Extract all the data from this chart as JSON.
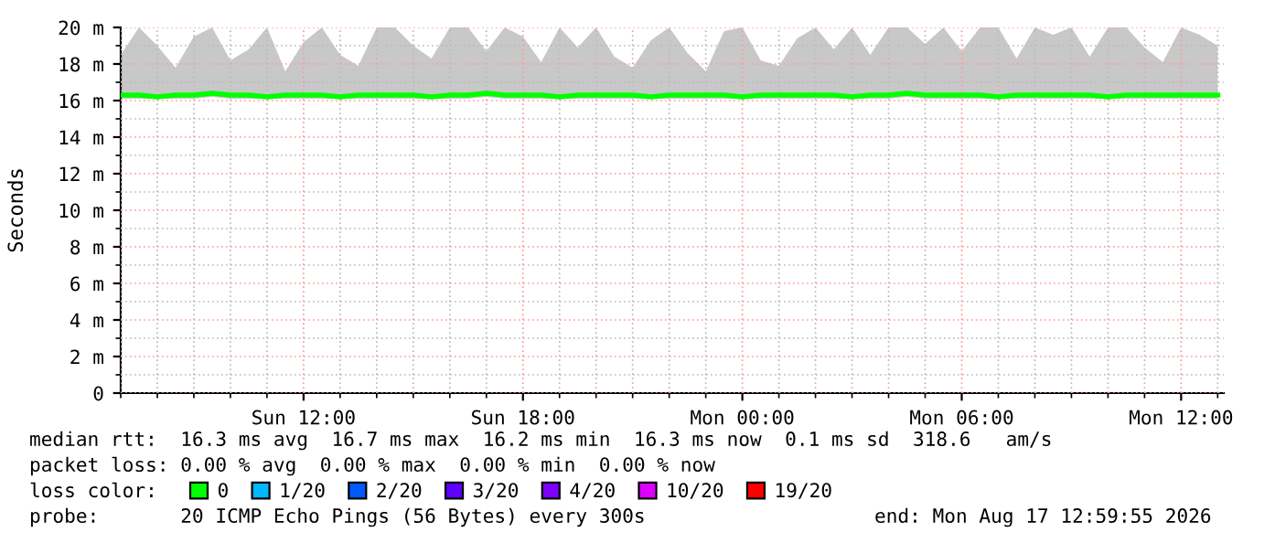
{
  "chart_data": {
    "type": "line",
    "ylabel": "Seconds",
    "x": [
      "2026-08-16T07:00",
      "2026-08-16T07:30",
      "2026-08-16T08:00",
      "2026-08-16T08:30",
      "2026-08-16T09:00",
      "2026-08-16T09:30",
      "2026-08-16T10:00",
      "2026-08-16T10:30",
      "2026-08-16T11:00",
      "2026-08-16T11:30",
      "2026-08-16T12:00",
      "2026-08-16T12:30",
      "2026-08-16T13:00",
      "2026-08-16T13:30",
      "2026-08-16T14:00",
      "2026-08-16T14:30",
      "2026-08-16T15:00",
      "2026-08-16T15:30",
      "2026-08-16T16:00",
      "2026-08-16T16:30",
      "2026-08-16T17:00",
      "2026-08-16T17:30",
      "2026-08-16T18:00",
      "2026-08-16T18:30",
      "2026-08-16T19:00",
      "2026-08-16T19:30",
      "2026-08-16T20:00",
      "2026-08-16T20:30",
      "2026-08-16T21:00",
      "2026-08-16T21:30",
      "2026-08-16T22:00",
      "2026-08-16T22:30",
      "2026-08-16T23:00",
      "2026-08-16T23:30",
      "2026-08-17T00:00",
      "2026-08-17T00:30",
      "2026-08-17T01:00",
      "2026-08-17T01:30",
      "2026-08-17T02:00",
      "2026-08-17T02:30",
      "2026-08-17T03:00",
      "2026-08-17T03:30",
      "2026-08-17T04:00",
      "2026-08-17T04:30",
      "2026-08-17T05:00",
      "2026-08-17T05:30",
      "2026-08-17T06:00",
      "2026-08-17T06:30",
      "2026-08-17T07:00",
      "2026-08-17T07:30",
      "2026-08-17T08:00",
      "2026-08-17T08:30",
      "2026-08-17T09:00",
      "2026-08-17T09:30",
      "2026-08-17T10:00",
      "2026-08-17T10:30",
      "2026-08-17T11:00",
      "2026-08-17T11:30",
      "2026-08-17T12:00",
      "2026-08-17T12:30",
      "2026-08-17T13:00"
    ],
    "series": [
      {
        "name": "0",
        "color": "#00ff00",
        "values": [
          16.3,
          16.3,
          16.2,
          16.3,
          16.3,
          16.4,
          16.3,
          16.3,
          16.2,
          16.3,
          16.3,
          16.3,
          16.2,
          16.3,
          16.3,
          16.3,
          16.3,
          16.2,
          16.3,
          16.3,
          16.4,
          16.3,
          16.3,
          16.3,
          16.2,
          16.3,
          16.3,
          16.3,
          16.3,
          16.2,
          16.3,
          16.3,
          16.3,
          16.3,
          16.2,
          16.3,
          16.3,
          16.3,
          16.3,
          16.3,
          16.2,
          16.3,
          16.3,
          16.4,
          16.3,
          16.3,
          16.3,
          16.3,
          16.2,
          16.3,
          16.3,
          16.3,
          16.3,
          16.3,
          16.2,
          16.3,
          16.3,
          16.3,
          16.3,
          16.3,
          16.3
        ],
        "lower": [
          16.1,
          16.1,
          16.1,
          16.1,
          16.1,
          16.2,
          16.1,
          16.1,
          16.1,
          16.1,
          16.1,
          16.1,
          16.1,
          16.1,
          16.1,
          16.1,
          16.1,
          16.1,
          16.1,
          16.1,
          16.2,
          16.1,
          16.1,
          16.1,
          16.1,
          16.1,
          16.1,
          16.1,
          16.1,
          16.1,
          16.1,
          16.1,
          16.1,
          16.1,
          16.1,
          16.1,
          16.1,
          16.1,
          16.1,
          16.1,
          16.1,
          16.1,
          16.1,
          16.2,
          16.1,
          16.1,
          16.1,
          16.1,
          16.1,
          16.1,
          16.1,
          16.1,
          16.1,
          16.1,
          16.1,
          16.1,
          16.1,
          16.1,
          16.1,
          16.1,
          16.1
        ],
        "upper": [
          18.5,
          20.0,
          19.0,
          17.8,
          19.5,
          20.0,
          18.2,
          18.8,
          20.0,
          17.6,
          19.2,
          20.0,
          18.5,
          17.9,
          20.0,
          20.0,
          19.0,
          18.3,
          20.0,
          20.0,
          18.7,
          20.0,
          19.5,
          18.1,
          20.0,
          18.9,
          20.0,
          18.4,
          17.8,
          19.3,
          20.0,
          18.6,
          17.6,
          19.8,
          20.0,
          18.2,
          17.9,
          19.4,
          20.0,
          18.8,
          20.0,
          18.5,
          20.0,
          20.0,
          19.1,
          20.0,
          18.7,
          20.0,
          20.0,
          18.3,
          20.0,
          19.6,
          20.0,
          18.4,
          20.0,
          20.0,
          18.9,
          18.1,
          20.0,
          19.6,
          19.0
        ]
      },
      {
        "name": "1/20",
        "color": "#00b8ff",
        "values": [
          null,
          null,
          null,
          null,
          null,
          null,
          null,
          null,
          null,
          null,
          null,
          null,
          null,
          null,
          null,
          null,
          null,
          null,
          null,
          null,
          null,
          null,
          null,
          null,
          null,
          null,
          null,
          null,
          null,
          null,
          null,
          null,
          null,
          null,
          null,
          null,
          null,
          null,
          null,
          null,
          null,
          null,
          null,
          null,
          null,
          null,
          null,
          null,
          null,
          null,
          null,
          null,
          null,
          null,
          null,
          null,
          null,
          null,
          null,
          null,
          null
        ]
      },
      {
        "name": "2/20",
        "color": "#0059ff",
        "values": [
          null,
          null,
          null,
          null,
          null,
          null,
          null,
          null,
          null,
          null,
          null,
          null,
          null,
          null,
          null,
          null,
          null,
          null,
          null,
          null,
          null,
          null,
          null,
          null,
          null,
          null,
          null,
          null,
          null,
          null,
          null,
          null,
          null,
          null,
          null,
          null,
          null,
          null,
          null,
          null,
          null,
          null,
          null,
          null,
          null,
          null,
          null,
          null,
          null,
          null,
          null,
          null,
          null,
          null,
          null,
          null,
          null,
          null,
          null,
          null,
          null
        ]
      },
      {
        "name": "3/20",
        "color": "#5e00ff",
        "values": [
          null,
          null,
          null,
          null,
          null,
          null,
          null,
          null,
          null,
          null,
          null,
          null,
          null,
          null,
          null,
          null,
          null,
          null,
          null,
          null,
          null,
          null,
          null,
          null,
          null,
          null,
          null,
          null,
          null,
          null,
          null,
          null,
          null,
          null,
          null,
          null,
          null,
          null,
          null,
          null,
          null,
          null,
          null,
          null,
          null,
          null,
          null,
          null,
          null,
          null,
          null,
          null,
          null,
          null,
          null,
          null,
          null,
          null,
          null,
          null,
          null
        ]
      },
      {
        "name": "4/20",
        "color": "#7e00ff",
        "values": [
          null,
          null,
          null,
          null,
          null,
          null,
          null,
          null,
          null,
          null,
          null,
          null,
          null,
          null,
          null,
          null,
          null,
          null,
          null,
          null,
          null,
          null,
          null,
          null,
          null,
          null,
          null,
          null,
          null,
          null,
          null,
          null,
          null,
          null,
          null,
          null,
          null,
          null,
          null,
          null,
          null,
          null,
          null,
          null,
          null,
          null,
          null,
          null,
          null,
          null,
          null,
          null,
          null,
          null,
          null,
          null,
          null,
          null,
          null,
          null,
          null
        ]
      },
      {
        "name": "10/20",
        "color": "#dd00ff",
        "values": [
          null,
          null,
          null,
          null,
          null,
          null,
          null,
          null,
          null,
          null,
          null,
          null,
          null,
          null,
          null,
          null,
          null,
          null,
          null,
          null,
          null,
          null,
          null,
          null,
          null,
          null,
          null,
          null,
          null,
          null,
          null,
          null,
          null,
          null,
          null,
          null,
          null,
          null,
          null,
          null,
          null,
          null,
          null,
          null,
          null,
          null,
          null,
          null,
          null,
          null,
          null,
          null,
          null,
          null,
          null,
          null,
          null,
          null,
          null,
          null,
          null
        ]
      },
      {
        "name": "19/20",
        "color": "#ff0000",
        "values": [
          null,
          null,
          null,
          null,
          null,
          null,
          null,
          null,
          null,
          null,
          null,
          null,
          null,
          null,
          null,
          null,
          null,
          null,
          null,
          null,
          null,
          null,
          null,
          null,
          null,
          null,
          null,
          null,
          null,
          null,
          null,
          null,
          null,
          null,
          null,
          null,
          null,
          null,
          null,
          null,
          null,
          null,
          null,
          null,
          null,
          null,
          null,
          null,
          null,
          null,
          null,
          null,
          null,
          null,
          null,
          null,
          null,
          null,
          null,
          null,
          null
        ]
      }
    ],
    "legend": "bottom",
    "legend_title": "loss color:",
    "xlim": [
      "2026-08-16T07:00",
      "2026-08-17T13:10"
    ],
    "xticks": [
      {
        "value": "2026-08-16T12:00",
        "label": "Sun 12:00"
      },
      {
        "value": "2026-08-16T18:00",
        "label": "Sun 18:00"
      },
      {
        "value": "2026-08-17T00:00",
        "label": "Mon 00:00"
      },
      {
        "value": "2026-08-17T06:00",
        "label": "Mon 06:00"
      },
      {
        "value": "2026-08-17T12:00",
        "label": "Mon 12:00"
      }
    ],
    "ylim": [
      0,
      20
    ],
    "yticks": [
      0,
      {
        "value": 2,
        "label": "2 m"
      },
      {
        "value": 4,
        "label": "4 m"
      },
      {
        "value": 6,
        "label": "6 m"
      },
      {
        "value": 8,
        "label": "8 m"
      },
      {
        "value": 10,
        "label": "10 m"
      },
      {
        "value": 12,
        "label": "12 m"
      },
      {
        "value": 14,
        "label": "14 m"
      },
      {
        "value": 16,
        "label": "16 m"
      },
      {
        "value": 18,
        "label": "18 m"
      },
      {
        "value": 20,
        "label": "20 m"
      }
    ],
    "grid": true,
    "annotations": [
      "median rtt:  16.3 ms avg  16.7 ms max  16.2 ms min  16.3 ms now  0.1 ms sd  318.6   am/s",
      "packet loss: 0.00 % avg  0.00 % max  0.00 % min  0.00 % now",
      "probe:       20 ICMP Echo Pings (56 Bytes) every 300s",
      "end: Mon Aug 17 12:59:55 2026"
    ]
  }
}
